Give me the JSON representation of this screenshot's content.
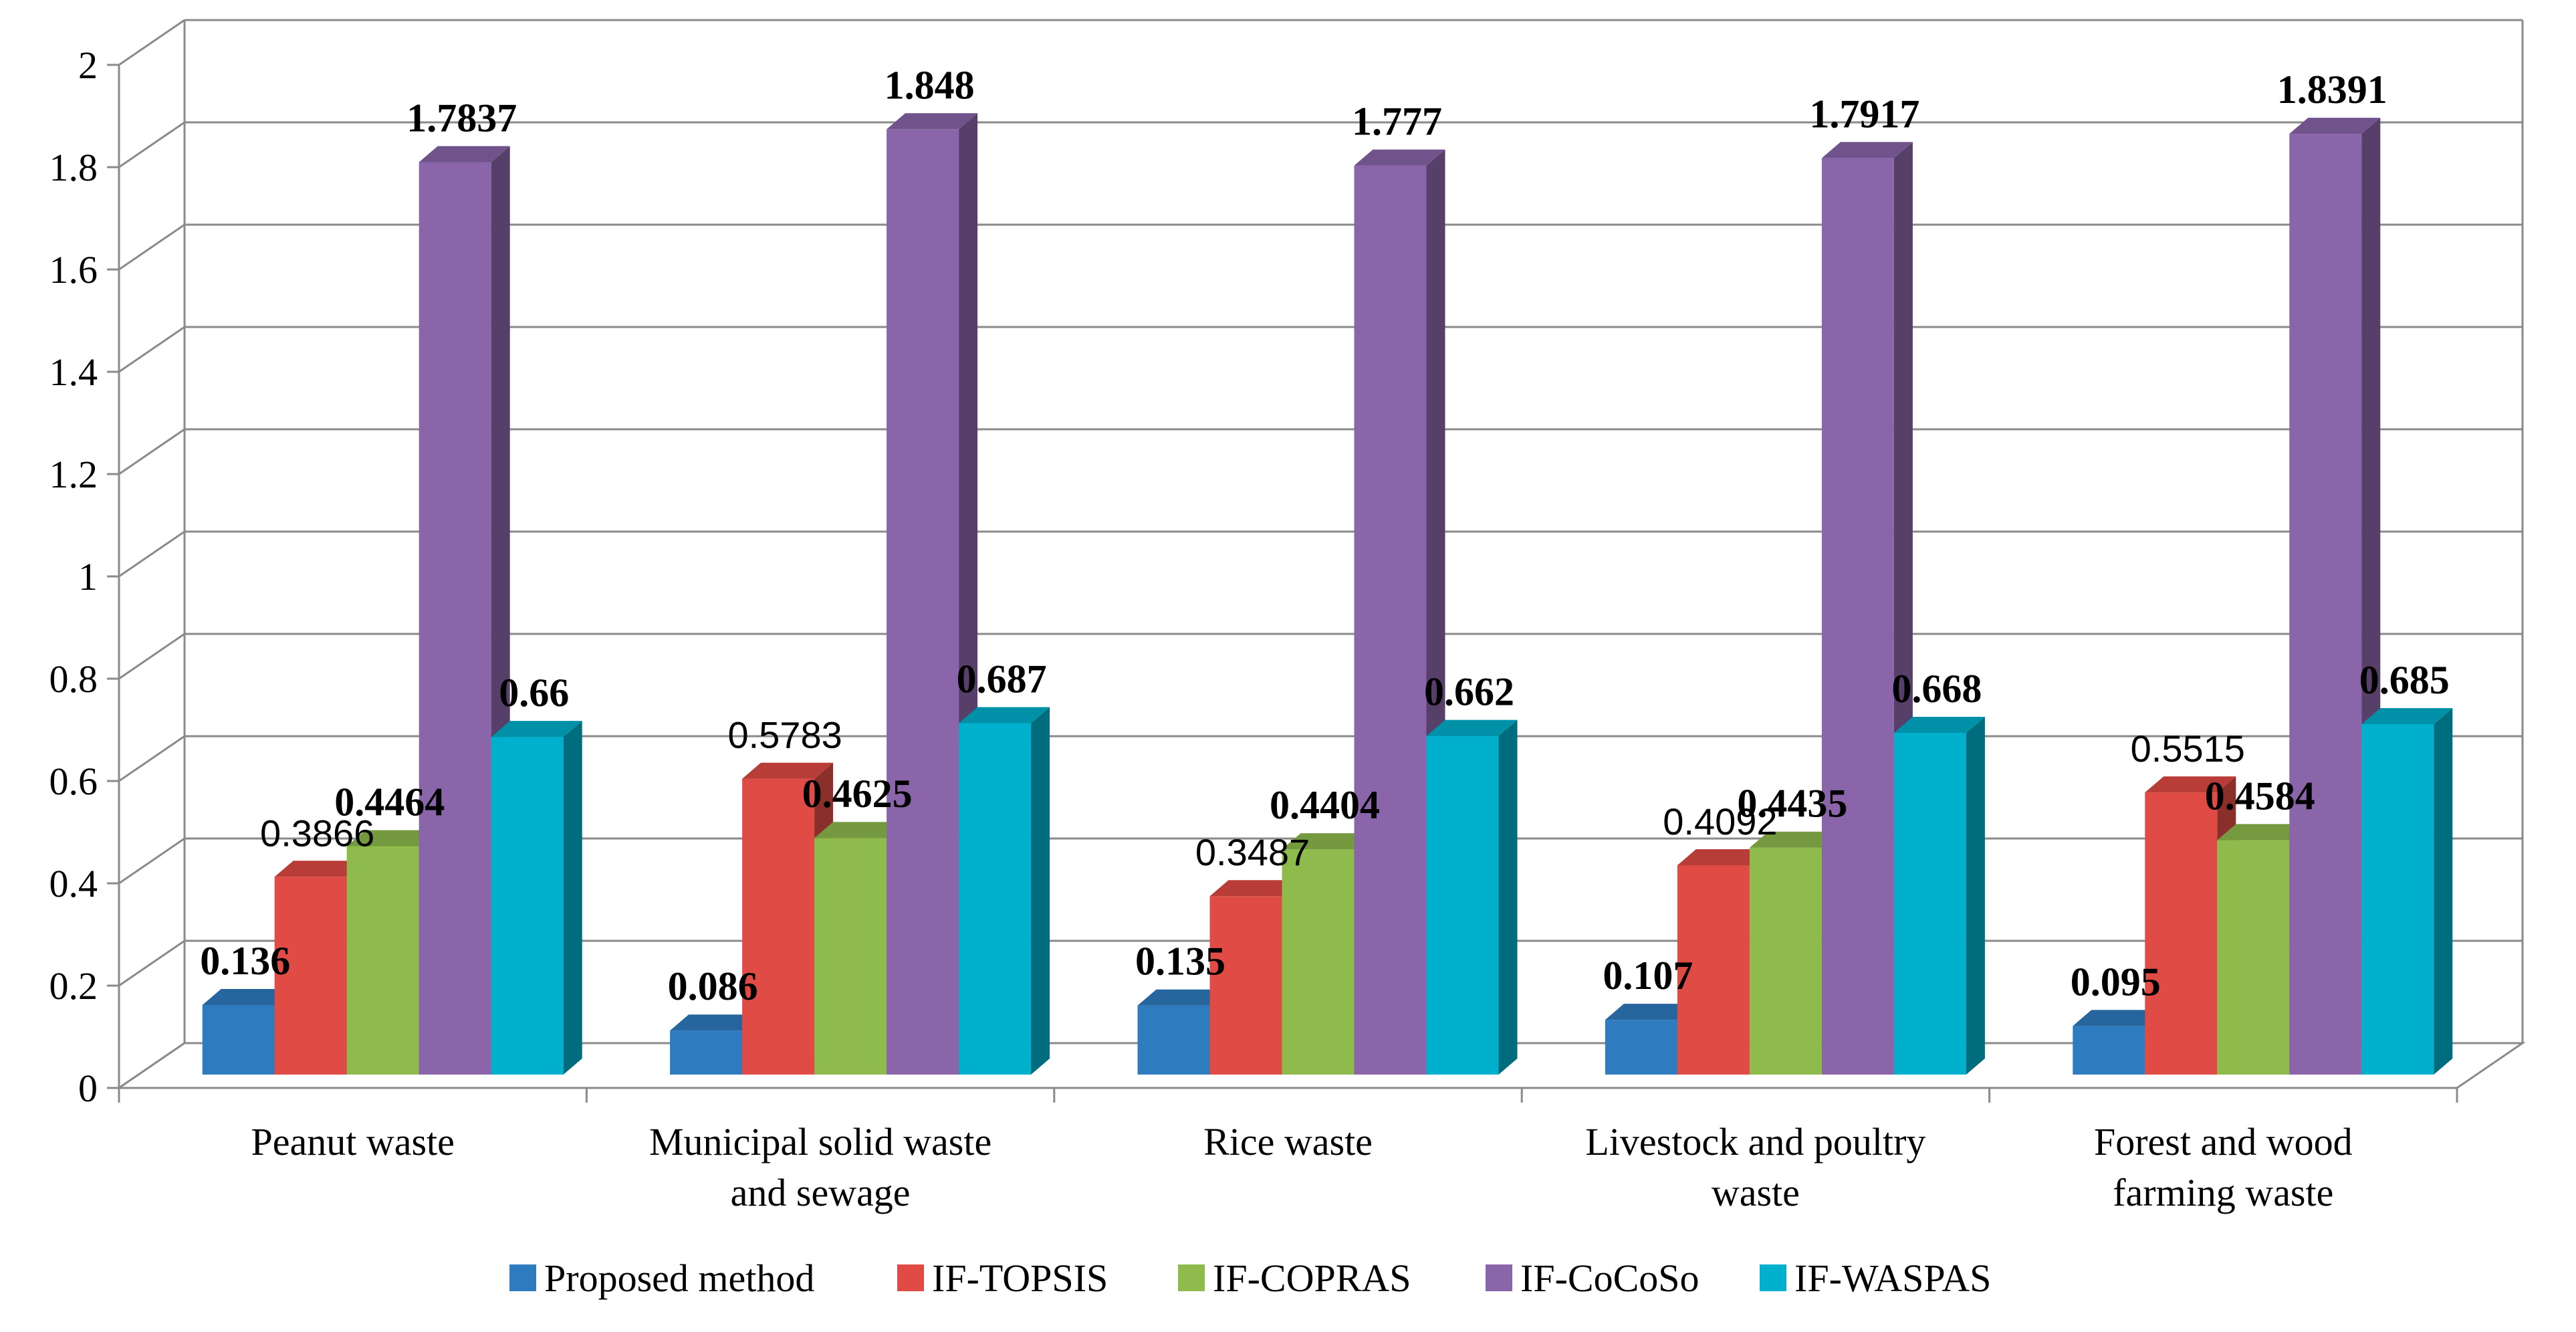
{
  "chart_data": {
    "type": "bar",
    "title": "",
    "xlabel": "",
    "ylabel": "",
    "ylim": [
      0,
      2
    ],
    "yticks": [
      0,
      0.2,
      0.4,
      0.6,
      0.8,
      1,
      1.2,
      1.4,
      1.6,
      1.8,
      2
    ],
    "ytick_labels": [
      "0",
      "0.2",
      "0.4",
      "0.6",
      "0.8",
      "1",
      "1.2",
      "1.4",
      "1.6",
      "1.8",
      "2"
    ],
    "grid": true,
    "legend_position": "bottom",
    "categories": [
      "Peanut waste",
      "Municipal solid waste and sewage",
      "Rice waste",
      "Livestock and poultry waste",
      "Forest and wood farming waste"
    ],
    "category_label_lines": [
      [
        "Peanut waste"
      ],
      [
        "Municipal solid waste",
        "and sewage"
      ],
      [
        "Rice waste"
      ],
      [
        "Livestock and poultry",
        "waste"
      ],
      [
        "Forest and wood",
        "farming waste"
      ]
    ],
    "series": [
      {
        "name": "Proposed method",
        "color": "#2e7bbf",
        "values": [
          0.136,
          0.086,
          0.135,
          0.107,
          0.095
        ],
        "labels": [
          "0.136",
          "0.086",
          "0.135",
          "0.107",
          "0.095"
        ]
      },
      {
        "name": "IF-TOPSIS",
        "color": "#e04b45",
        "values": [
          0.3866,
          0.5783,
          0.3487,
          0.4092,
          0.5515
        ],
        "labels": [
          "0.3866",
          "0.5783",
          "0.3487",
          "0.4092",
          "0.5515"
        ]
      },
      {
        "name": "IF-COPRAS",
        "color": "#8fba4c",
        "values": [
          0.4464,
          0.4625,
          0.4404,
          0.4435,
          0.4584
        ],
        "labels": [
          "0.4464",
          "0.4625",
          "0.4404",
          "0.4435",
          "0.4584"
        ]
      },
      {
        "name": "IF-CoCoSo",
        "color": "#8a65a9",
        "values": [
          1.7837,
          1.848,
          1.777,
          1.7917,
          1.8391
        ],
        "labels": [
          "1.7837",
          "1.848",
          "1.777",
          "1.7917",
          "1.8391"
        ]
      },
      {
        "name": "IF-WASPAS",
        "color": "#00b0cc",
        "values": [
          0.66,
          0.687,
          0.662,
          0.668,
          0.685
        ],
        "labels": [
          "0.66",
          "0.687",
          "0.662",
          "0.668",
          "0.685"
        ]
      }
    ]
  }
}
